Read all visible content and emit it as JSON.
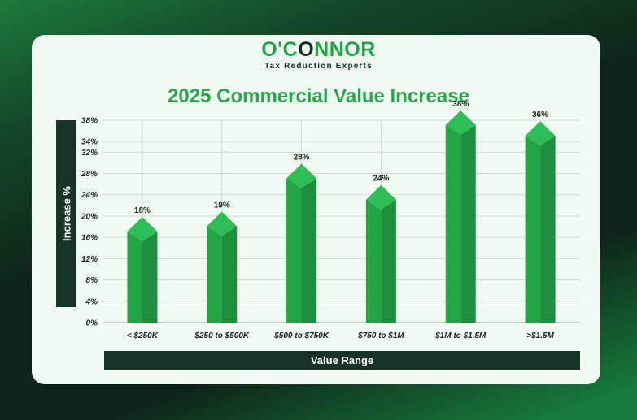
{
  "logo": {
    "word_green_start": "O'C",
    "word_dark": "O",
    "word_green_end": "NNOR",
    "tagline": "Tax Reduction Experts"
  },
  "colors": {
    "accent": "#25a94b",
    "bar": "#22a447",
    "bar_light": "#2fbd55",
    "bar_dark": "#1c8e3d",
    "dark": "#17332a",
    "card": "#f1faf2"
  },
  "chart_data": {
    "type": "bar",
    "title": "2025 Commercial Value Increase",
    "xlabel": "Value Range",
    "ylabel": "Increase %",
    "categories": [
      "< $250K",
      "$250 to $500K",
      "$500 to $750K",
      "$750 to $1M",
      "$1M to $1.5M",
      ">$1.5M"
    ],
    "values": [
      18,
      19,
      28,
      24,
      38,
      36
    ],
    "data_labels": [
      "18%",
      "19%",
      "28%",
      "24%",
      "38%",
      "36%"
    ],
    "ylim": [
      0,
      38
    ],
    "yticks": [
      0,
      4,
      8,
      12,
      16,
      20,
      24,
      28,
      32,
      34,
      38
    ],
    "ytick_labels": [
      "0%",
      "4%",
      "8%",
      "12%",
      "16%",
      "20%",
      "24%",
      "28%",
      "32%",
      "34%",
      "38%"
    ],
    "grid": true,
    "legend": "none"
  }
}
